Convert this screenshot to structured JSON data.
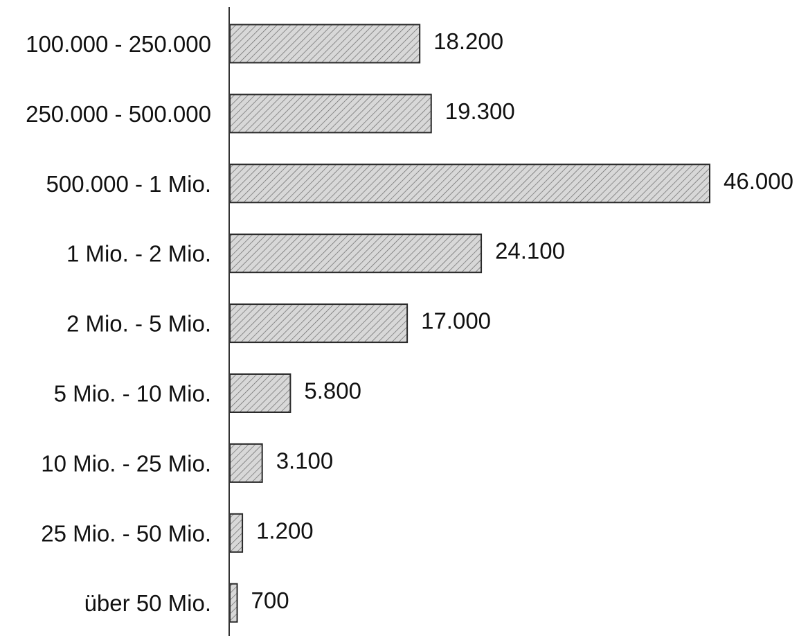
{
  "chart_data": {
    "type": "bar",
    "orientation": "horizontal",
    "categories": [
      "100.000 - 250.000",
      "250.000 - 500.000",
      "500.000 - 1 Mio.",
      "1 Mio. - 2 Mio.",
      "2 Mio. - 5 Mio.",
      "5 Mio. - 10 Mio.",
      "10 Mio. - 25 Mio.",
      "25 Mio. - 50 Mio.",
      "über 50 Mio."
    ],
    "values": [
      18200,
      19300,
      46000,
      24100,
      17000,
      5800,
      3100,
      1200,
      700
    ],
    "data_labels": [
      "18.200",
      "19.300",
      "46.000",
      "24.100",
      "17.000",
      "5.800",
      "3.100",
      "1.200",
      "700"
    ],
    "xlim": [
      0,
      46000
    ],
    "grid": false,
    "legend": "none",
    "colors": {
      "bar_fill": "#d8d8d8",
      "hatch": "#6a6a6a",
      "bar_stroke": "#2a2a2a",
      "axis": "#333333",
      "text": "#111111"
    }
  }
}
